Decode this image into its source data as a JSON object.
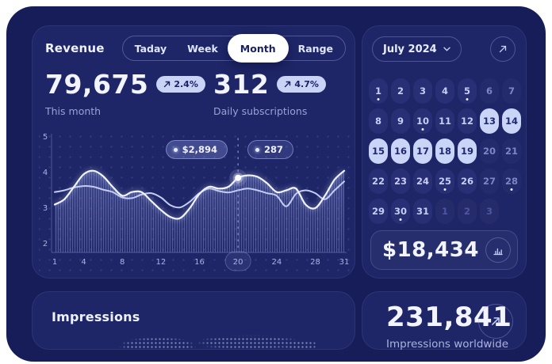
{
  "theme": {
    "page_bg": "#ffffff",
    "frame_bg": "#171d58",
    "card_bg": "#1f2667",
    "accent_light": "#c9d3f6",
    "accent_ink": "#1b2264",
    "text_primary": "#f2f4ff",
    "text_secondary": "#98a2d6",
    "selected_day_bg": "#cad4f7",
    "line_color": "#eff3ff"
  },
  "revenue": {
    "title": "Revenue",
    "tabs": [
      {
        "label": "Taday",
        "active": false
      },
      {
        "label": "Week",
        "active": false
      },
      {
        "label": "Month",
        "active": true
      },
      {
        "label": "Range",
        "active": false
      }
    ],
    "stats": [
      {
        "value": "79,675",
        "delta": "2.4%",
        "caption": "This month"
      },
      {
        "value": "312",
        "delta": "4.7%",
        "caption": "Daily subscriptions"
      }
    ]
  },
  "chart_data": {
    "type": "area",
    "x": [
      1,
      2,
      3,
      4,
      5,
      6,
      7,
      8,
      9,
      10,
      11,
      12,
      13,
      14,
      15,
      16,
      17,
      18,
      19,
      20,
      21,
      22,
      23,
      24,
      25,
      26,
      27,
      28,
      29,
      30,
      31
    ],
    "series": [
      {
        "name": "revenue",
        "filled": true,
        "values": [
          3.1,
          3.25,
          3.6,
          3.95,
          4.05,
          3.9,
          3.6,
          3.35,
          3.45,
          3.45,
          3.2,
          2.95,
          2.75,
          2.72,
          3.0,
          3.4,
          3.6,
          3.55,
          3.6,
          3.85,
          3.92,
          3.88,
          3.7,
          3.45,
          3.5,
          3.55,
          3.1,
          3.0,
          3.35,
          3.8,
          4.05
        ]
      },
      {
        "name": "subscriptions",
        "filled": false,
        "values": [
          3.45,
          3.5,
          3.58,
          3.62,
          3.6,
          3.52,
          3.45,
          3.3,
          3.28,
          3.38,
          3.42,
          3.3,
          3.08,
          3.02,
          3.18,
          3.42,
          3.55,
          3.48,
          3.44,
          3.5,
          3.55,
          3.5,
          3.42,
          3.35,
          3.05,
          3.4,
          3.5,
          3.42,
          3.25,
          3.5,
          3.75
        ]
      }
    ],
    "xticks": [
      1,
      4,
      8,
      12,
      16,
      20,
      24,
      28,
      31
    ],
    "yticks": [
      5,
      4,
      3,
      2
    ],
    "ylim": [
      2,
      5
    ],
    "grid": "dotted",
    "highlight": {
      "x": 20,
      "tooltips": [
        "$2,894",
        "287"
      ]
    }
  },
  "calendar": {
    "month_label": "July 2024",
    "total": "$18,434",
    "days": [
      {
        "label": "1",
        "dot": true
      },
      {
        "label": "2"
      },
      {
        "label": "3"
      },
      {
        "label": "4"
      },
      {
        "label": "5",
        "dot": true
      },
      {
        "label": "6"
      },
      {
        "label": "7"
      },
      {
        "label": "8"
      },
      {
        "label": "9"
      },
      {
        "label": "10",
        "dot": true
      },
      {
        "label": "11"
      },
      {
        "label": "12"
      },
      {
        "label": "13",
        "selected": true
      },
      {
        "label": "14",
        "selected": true
      },
      {
        "label": "15",
        "selected": true
      },
      {
        "label": "16",
        "selected": true
      },
      {
        "label": "17",
        "selected": true
      },
      {
        "label": "18",
        "selected": true
      },
      {
        "label": "19",
        "selected": true
      },
      {
        "label": "20"
      },
      {
        "label": "21"
      },
      {
        "label": "22"
      },
      {
        "label": "23"
      },
      {
        "label": "24"
      },
      {
        "label": "25",
        "dot": true
      },
      {
        "label": "26"
      },
      {
        "label": "27"
      },
      {
        "label": "28",
        "dot": true
      },
      {
        "label": "29"
      },
      {
        "label": "30",
        "dot": true
      },
      {
        "label": "31"
      },
      {
        "label": "1",
        "muted": true
      },
      {
        "label": "2",
        "muted": true
      },
      {
        "label": "3",
        "muted": true
      },
      {
        "label": "",
        "empty": true
      }
    ]
  },
  "impressions": {
    "title": "Impressions"
  },
  "worldwide": {
    "value": "231,841",
    "caption": "Impressions worldwide"
  }
}
